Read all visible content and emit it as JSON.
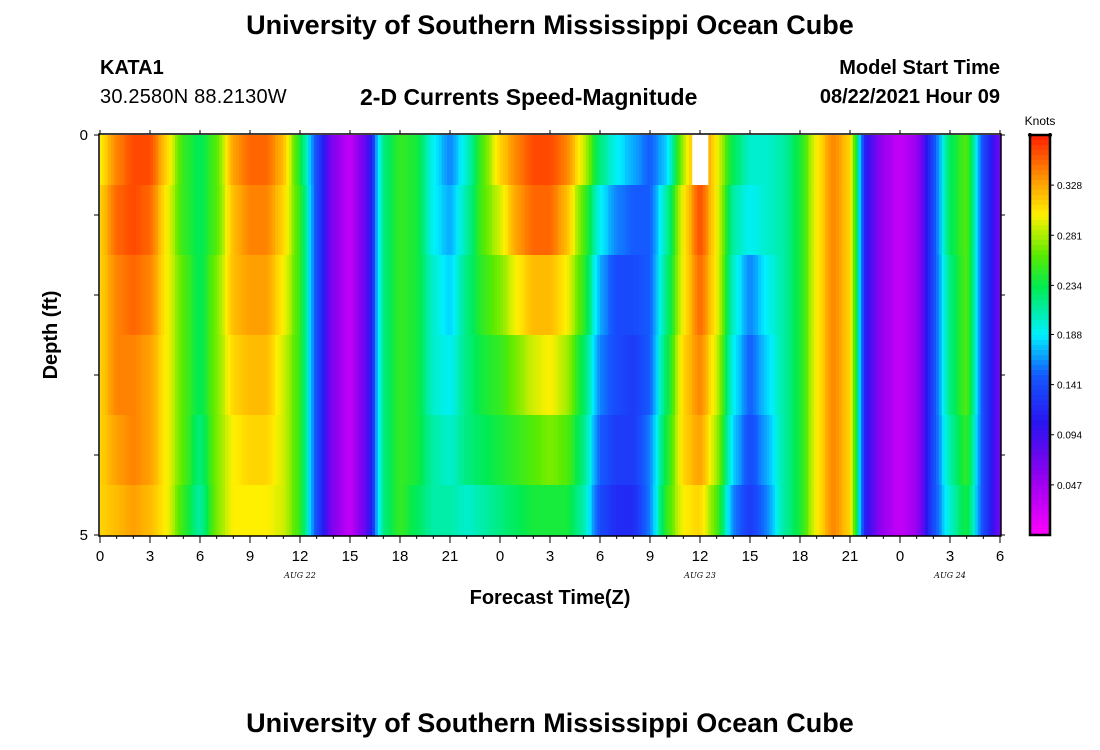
{
  "header": {
    "title": "University of Southern Mississippi Ocean Cube",
    "station": "KATA1",
    "location": "30.2580N  88.2130W",
    "model_label": "Model Start Time",
    "model_time": "08/22/2021 Hour 09"
  },
  "footer": {
    "title": "University of Southern Mississippi Ocean Cube"
  },
  "chart_data": {
    "type": "heatmap",
    "title": "2-D Currents Speed-Magnitude",
    "xlabel": "Forecast Time(Z)",
    "ylabel": "Depth (ft)",
    "x_tick_labels": [
      "0",
      "3",
      "6",
      "9",
      "12",
      "15",
      "18",
      "21",
      "0",
      "3",
      "6",
      "9",
      "12",
      "15",
      "18",
      "21",
      "0",
      "3",
      "6"
    ],
    "x_tick_hours": [
      0,
      3,
      6,
      9,
      12,
      15,
      18,
      21,
      24,
      27,
      30,
      33,
      36,
      39,
      42,
      45,
      48,
      51,
      54
    ],
    "date_labels": [
      {
        "text": "AUG  22",
        "hour": 12
      },
      {
        "text": "AUG  23",
        "hour": 36
      },
      {
        "text": "AUG  24",
        "hour": 51
      }
    ],
    "y_tick_labels": [
      "0",
      "5"
    ],
    "y_range": [
      0,
      5
    ],
    "x_range_hours": [
      0,
      54
    ],
    "colorbar": {
      "unit": "Knots",
      "ticks": [
        "0.328",
        "0.281",
        "0.234",
        "0.188",
        "0.141",
        "0.094",
        "0.047"
      ],
      "tick_values": [
        0.328,
        0.281,
        0.234,
        0.188,
        0.141,
        0.094,
        0.047
      ],
      "min": 0.0,
      "max": 0.375
    },
    "depth_rows": [
      0.25,
      1.0,
      2.0,
      3.0,
      4.0,
      4.75
    ],
    "speed_profile": [
      {
        "hour": 0,
        "values": [
          0.3,
          0.31,
          0.31,
          0.31,
          0.31,
          0.31
        ]
      },
      {
        "hour": 1,
        "values": [
          0.34,
          0.35,
          0.34,
          0.34,
          0.33,
          0.32
        ]
      },
      {
        "hour": 2,
        "values": [
          0.36,
          0.36,
          0.35,
          0.34,
          0.34,
          0.33
        ]
      },
      {
        "hour": 3,
        "values": [
          0.36,
          0.35,
          0.34,
          0.33,
          0.33,
          0.32
        ]
      },
      {
        "hour": 4,
        "values": [
          0.31,
          0.3,
          0.3,
          0.3,
          0.3,
          0.3
        ]
      },
      {
        "hour": 5,
        "values": [
          0.25,
          0.25,
          0.26,
          0.26,
          0.26,
          0.25
        ]
      },
      {
        "hour": 6,
        "values": [
          0.23,
          0.23,
          0.23,
          0.23,
          0.22,
          0.21
        ]
      },
      {
        "hour": 7,
        "values": [
          0.26,
          0.26,
          0.27,
          0.27,
          0.27,
          0.27
        ]
      },
      {
        "hour": 8,
        "values": [
          0.33,
          0.32,
          0.32,
          0.31,
          0.3,
          0.3
        ]
      },
      {
        "hour": 9,
        "values": [
          0.35,
          0.34,
          0.33,
          0.32,
          0.31,
          0.3
        ]
      },
      {
        "hour": 10,
        "values": [
          0.35,
          0.34,
          0.33,
          0.32,
          0.31,
          0.3
        ]
      },
      {
        "hour": 11,
        "values": [
          0.32,
          0.31,
          0.3,
          0.29,
          0.29,
          0.29
        ]
      },
      {
        "hour": 12,
        "values": [
          0.24,
          0.25,
          0.25,
          0.25,
          0.25,
          0.25
        ]
      },
      {
        "hour": 13,
        "values": [
          0.14,
          0.14,
          0.14,
          0.14,
          0.14,
          0.14
        ]
      },
      {
        "hour": 14,
        "values": [
          0.06,
          0.06,
          0.06,
          0.06,
          0.06,
          0.06
        ]
      },
      {
        "hour": 15,
        "values": [
          0.03,
          0.03,
          0.03,
          0.03,
          0.03,
          0.03
        ]
      },
      {
        "hour": 16,
        "values": [
          0.08,
          0.08,
          0.08,
          0.08,
          0.08,
          0.08
        ]
      },
      {
        "hour": 17,
        "values": [
          0.22,
          0.22,
          0.22,
          0.22,
          0.22,
          0.22
        ]
      },
      {
        "hour": 18,
        "values": [
          0.25,
          0.25,
          0.25,
          0.25,
          0.25,
          0.25
        ]
      },
      {
        "hour": 19,
        "values": [
          0.24,
          0.24,
          0.24,
          0.24,
          0.24,
          0.23
        ]
      },
      {
        "hour": 20,
        "values": [
          0.19,
          0.19,
          0.2,
          0.2,
          0.21,
          0.21
        ]
      },
      {
        "hour": 21,
        "values": [
          0.16,
          0.17,
          0.18,
          0.19,
          0.2,
          0.21
        ]
      },
      {
        "hour": 22,
        "values": [
          0.2,
          0.21,
          0.22,
          0.22,
          0.22,
          0.2
        ]
      },
      {
        "hour": 23,
        "values": [
          0.26,
          0.26,
          0.25,
          0.24,
          0.23,
          0.21
        ]
      },
      {
        "hour": 24,
        "values": [
          0.31,
          0.29,
          0.27,
          0.25,
          0.24,
          0.22
        ]
      },
      {
        "hour": 25,
        "values": [
          0.34,
          0.33,
          0.3,
          0.27,
          0.25,
          0.23
        ]
      },
      {
        "hour": 26,
        "values": [
          0.36,
          0.35,
          0.32,
          0.29,
          0.26,
          0.24
        ]
      },
      {
        "hour": 27,
        "values": [
          0.36,
          0.35,
          0.32,
          0.3,
          0.27,
          0.24
        ]
      },
      {
        "hour": 28,
        "values": [
          0.34,
          0.32,
          0.3,
          0.28,
          0.26,
          0.24
        ]
      },
      {
        "hour": 29,
        "values": [
          0.29,
          0.26,
          0.25,
          0.23,
          0.22,
          0.21
        ]
      },
      {
        "hour": 30,
        "values": [
          0.22,
          0.19,
          0.17,
          0.16,
          0.15,
          0.14
        ]
      },
      {
        "hour": 31,
        "values": [
          0.19,
          0.16,
          0.14,
          0.14,
          0.13,
          0.12
        ]
      },
      {
        "hour": 32,
        "values": [
          0.17,
          0.15,
          0.14,
          0.13,
          0.13,
          0.12
        ]
      },
      {
        "hour": 33,
        "values": [
          0.15,
          0.15,
          0.15,
          0.15,
          0.16,
          0.16
        ]
      },
      {
        "hour": 34,
        "values": [
          0.18,
          0.21,
          0.22,
          0.23,
          0.24,
          0.25
        ]
      },
      {
        "hour": 35,
        "values": [
          0.28,
          0.3,
          0.3,
          0.31,
          0.31,
          0.3
        ]
      },
      {
        "hour": 36,
        "values": [
          0.36,
          0.36,
          0.35,
          0.34,
          0.33,
          0.31
        ]
      },
      {
        "hour": 37,
        "values": [
          0.3,
          0.3,
          0.3,
          0.29,
          0.28,
          0.26
        ]
      },
      {
        "hour": 38,
        "values": [
          0.23,
          0.21,
          0.2,
          0.19,
          0.18,
          0.16
        ]
      },
      {
        "hour": 39,
        "values": [
          0.2,
          0.19,
          0.16,
          0.15,
          0.14,
          0.13
        ]
      },
      {
        "hour": 40,
        "values": [
          0.2,
          0.2,
          0.19,
          0.18,
          0.17,
          0.16
        ]
      },
      {
        "hour": 41,
        "values": [
          0.21,
          0.21,
          0.21,
          0.21,
          0.21,
          0.21
        ]
      },
      {
        "hour": 42,
        "values": [
          0.24,
          0.24,
          0.24,
          0.24,
          0.24,
          0.24
        ]
      },
      {
        "hour": 43,
        "values": [
          0.3,
          0.3,
          0.3,
          0.3,
          0.3,
          0.3
        ]
      },
      {
        "hour": 44,
        "values": [
          0.34,
          0.34,
          0.34,
          0.34,
          0.34,
          0.34
        ]
      },
      {
        "hour": 45,
        "values": [
          0.31,
          0.31,
          0.31,
          0.31,
          0.31,
          0.31
        ]
      },
      {
        "hour": 46,
        "values": [
          0.1,
          0.1,
          0.1,
          0.1,
          0.1,
          0.1
        ]
      },
      {
        "hour": 47,
        "values": [
          0.05,
          0.05,
          0.05,
          0.05,
          0.05,
          0.05
        ]
      },
      {
        "hour": 48,
        "values": [
          0.03,
          0.03,
          0.03,
          0.03,
          0.03,
          0.03
        ]
      },
      {
        "hour": 49,
        "values": [
          0.05,
          0.05,
          0.05,
          0.05,
          0.05,
          0.05
        ]
      },
      {
        "hour": 50,
        "values": [
          0.14,
          0.14,
          0.14,
          0.14,
          0.14,
          0.14
        ]
      },
      {
        "hour": 51,
        "values": [
          0.23,
          0.23,
          0.22,
          0.22,
          0.21,
          0.2
        ]
      },
      {
        "hour": 52,
        "values": [
          0.26,
          0.26,
          0.26,
          0.26,
          0.25,
          0.24
        ]
      },
      {
        "hour": 53,
        "values": [
          0.14,
          0.14,
          0.14,
          0.14,
          0.14,
          0.14
        ]
      },
      {
        "hour": 54,
        "values": [
          0.07,
          0.07,
          0.07,
          0.07,
          0.07,
          0.07
        ]
      }
    ],
    "missing_cells": [
      {
        "hour": 36,
        "depth": 0.25
      }
    ]
  },
  "colors": {
    "background": "#ffffff",
    "axis": "#000000",
    "missing": "#ffffff"
  }
}
